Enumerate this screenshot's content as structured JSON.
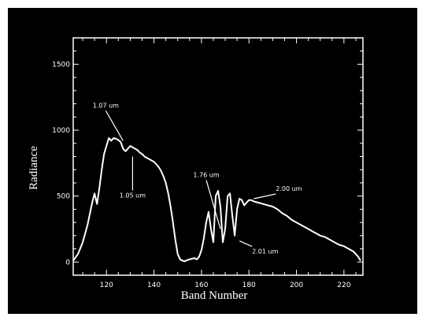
{
  "colors": {
    "background": "#000000",
    "foreground": "#ffffff"
  },
  "chart_data": {
    "type": "line",
    "title": "",
    "xlabel": "Band Number",
    "ylabel": "Radiance",
    "xlim": [
      106,
      228
    ],
    "ylim": [
      -100,
      1700
    ],
    "x_ticks": [
      120,
      140,
      160,
      180,
      200,
      220
    ],
    "x_tick_labels": [
      "120",
      "140",
      "160",
      "180",
      "200",
      "220"
    ],
    "y_ticks": [
      0,
      500,
      1000,
      1500
    ],
    "y_tick_labels": [
      "0",
      "500",
      "1000",
      "1500"
    ],
    "grid": false,
    "series": [
      {
        "x": [
          106,
          108,
          110,
          112,
          114,
          115,
          116,
          117,
          118,
          119,
          120,
          121,
          122,
          123,
          124,
          125,
          126,
          127,
          128,
          129,
          130,
          131,
          132,
          133,
          134,
          135,
          136,
          137,
          138,
          139,
          140,
          141,
          142,
          143,
          144,
          145,
          146,
          147,
          148,
          149,
          150,
          151,
          152,
          153,
          154,
          155,
          156,
          157,
          158,
          159,
          160,
          161,
          162,
          163,
          164,
          165,
          166,
          167,
          168,
          169,
          170,
          171,
          172,
          173,
          174,
          175,
          176,
          177,
          178,
          179,
          180,
          181,
          182,
          184,
          186,
          188,
          190,
          192,
          194,
          196,
          198,
          200,
          202,
          204,
          206,
          208,
          210,
          212,
          214,
          216,
          218,
          220,
          222,
          224,
          226,
          227
        ],
        "y": [
          10,
          60,
          150,
          280,
          450,
          520,
          440,
          560,
          700,
          820,
          880,
          940,
          920,
          940,
          935,
          925,
          910,
          860,
          840,
          860,
          880,
          870,
          860,
          850,
          830,
          820,
          800,
          790,
          780,
          770,
          760,
          740,
          720,
          690,
          650,
          600,
          520,
          420,
          300,
          170,
          60,
          20,
          10,
          5,
          15,
          20,
          25,
          30,
          20,
          40,
          90,
          180,
          300,
          380,
          250,
          150,
          500,
          540,
          420,
          150,
          250,
          500,
          520,
          350,
          200,
          400,
          480,
          470,
          430,
          450,
          470,
          470,
          460,
          450,
          440,
          430,
          420,
          400,
          370,
          350,
          320,
          300,
          280,
          260,
          240,
          220,
          200,
          190,
          170,
          150,
          130,
          120,
          100,
          80,
          40,
          10
        ]
      }
    ],
    "annotations": [
      {
        "text": "1.07 um",
        "x": 127,
        "y": 920
      },
      {
        "text": "1.05 um",
        "x": 131,
        "y": 800
      },
      {
        "text": "1.76 um",
        "x": 168,
        "y": 250
      },
      {
        "text": "2.00 um",
        "x": 182,
        "y": 480
      },
      {
        "text": "2.01 um",
        "x": 176,
        "y": 160
      }
    ]
  }
}
